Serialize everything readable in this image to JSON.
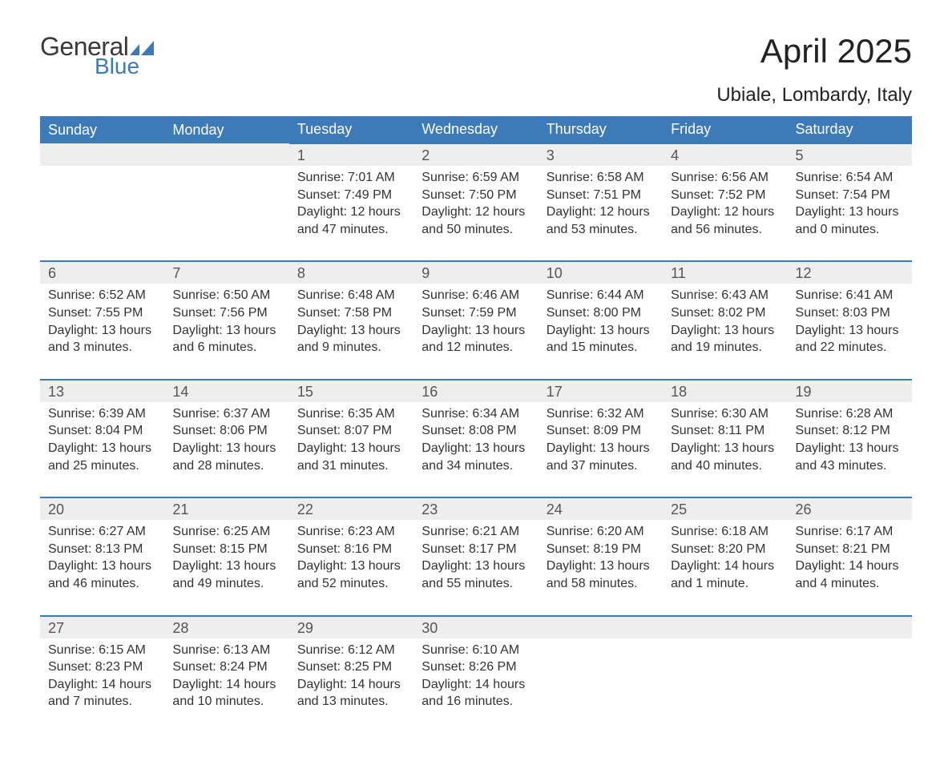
{
  "logo": {
    "general": "General",
    "blue": "Blue"
  },
  "title": "April 2025",
  "location": "Ubiale, Lombardy, Italy",
  "colors": {
    "header_bg": "#3d7ab8",
    "header_text": "#ffffff",
    "daynum_bg": "#eeeeee",
    "row_border": "#3d7ab8",
    "body_text": "#333333",
    "logo_blue": "#3d7ab8",
    "logo_gray": "#3a3a3a"
  },
  "weekdays": [
    "Sunday",
    "Monday",
    "Tuesday",
    "Wednesday",
    "Thursday",
    "Friday",
    "Saturday"
  ],
  "weeks": [
    [
      null,
      null,
      {
        "n": "1",
        "sr": "Sunrise: 7:01 AM",
        "ss": "Sunset: 7:49 PM",
        "dl1": "Daylight: 12 hours",
        "dl2": "and 47 minutes."
      },
      {
        "n": "2",
        "sr": "Sunrise: 6:59 AM",
        "ss": "Sunset: 7:50 PM",
        "dl1": "Daylight: 12 hours",
        "dl2": "and 50 minutes."
      },
      {
        "n": "3",
        "sr": "Sunrise: 6:58 AM",
        "ss": "Sunset: 7:51 PM",
        "dl1": "Daylight: 12 hours",
        "dl2": "and 53 minutes."
      },
      {
        "n": "4",
        "sr": "Sunrise: 6:56 AM",
        "ss": "Sunset: 7:52 PM",
        "dl1": "Daylight: 12 hours",
        "dl2": "and 56 minutes."
      },
      {
        "n": "5",
        "sr": "Sunrise: 6:54 AM",
        "ss": "Sunset: 7:54 PM",
        "dl1": "Daylight: 13 hours",
        "dl2": "and 0 minutes."
      }
    ],
    [
      {
        "n": "6",
        "sr": "Sunrise: 6:52 AM",
        "ss": "Sunset: 7:55 PM",
        "dl1": "Daylight: 13 hours",
        "dl2": "and 3 minutes."
      },
      {
        "n": "7",
        "sr": "Sunrise: 6:50 AM",
        "ss": "Sunset: 7:56 PM",
        "dl1": "Daylight: 13 hours",
        "dl2": "and 6 minutes."
      },
      {
        "n": "8",
        "sr": "Sunrise: 6:48 AM",
        "ss": "Sunset: 7:58 PM",
        "dl1": "Daylight: 13 hours",
        "dl2": "and 9 minutes."
      },
      {
        "n": "9",
        "sr": "Sunrise: 6:46 AM",
        "ss": "Sunset: 7:59 PM",
        "dl1": "Daylight: 13 hours",
        "dl2": "and 12 minutes."
      },
      {
        "n": "10",
        "sr": "Sunrise: 6:44 AM",
        "ss": "Sunset: 8:00 PM",
        "dl1": "Daylight: 13 hours",
        "dl2": "and 15 minutes."
      },
      {
        "n": "11",
        "sr": "Sunrise: 6:43 AM",
        "ss": "Sunset: 8:02 PM",
        "dl1": "Daylight: 13 hours",
        "dl2": "and 19 minutes."
      },
      {
        "n": "12",
        "sr": "Sunrise: 6:41 AM",
        "ss": "Sunset: 8:03 PM",
        "dl1": "Daylight: 13 hours",
        "dl2": "and 22 minutes."
      }
    ],
    [
      {
        "n": "13",
        "sr": "Sunrise: 6:39 AM",
        "ss": "Sunset: 8:04 PM",
        "dl1": "Daylight: 13 hours",
        "dl2": "and 25 minutes."
      },
      {
        "n": "14",
        "sr": "Sunrise: 6:37 AM",
        "ss": "Sunset: 8:06 PM",
        "dl1": "Daylight: 13 hours",
        "dl2": "and 28 minutes."
      },
      {
        "n": "15",
        "sr": "Sunrise: 6:35 AM",
        "ss": "Sunset: 8:07 PM",
        "dl1": "Daylight: 13 hours",
        "dl2": "and 31 minutes."
      },
      {
        "n": "16",
        "sr": "Sunrise: 6:34 AM",
        "ss": "Sunset: 8:08 PM",
        "dl1": "Daylight: 13 hours",
        "dl2": "and 34 minutes."
      },
      {
        "n": "17",
        "sr": "Sunrise: 6:32 AM",
        "ss": "Sunset: 8:09 PM",
        "dl1": "Daylight: 13 hours",
        "dl2": "and 37 minutes."
      },
      {
        "n": "18",
        "sr": "Sunrise: 6:30 AM",
        "ss": "Sunset: 8:11 PM",
        "dl1": "Daylight: 13 hours",
        "dl2": "and 40 minutes."
      },
      {
        "n": "19",
        "sr": "Sunrise: 6:28 AM",
        "ss": "Sunset: 8:12 PM",
        "dl1": "Daylight: 13 hours",
        "dl2": "and 43 minutes."
      }
    ],
    [
      {
        "n": "20",
        "sr": "Sunrise: 6:27 AM",
        "ss": "Sunset: 8:13 PM",
        "dl1": "Daylight: 13 hours",
        "dl2": "and 46 minutes."
      },
      {
        "n": "21",
        "sr": "Sunrise: 6:25 AM",
        "ss": "Sunset: 8:15 PM",
        "dl1": "Daylight: 13 hours",
        "dl2": "and 49 minutes."
      },
      {
        "n": "22",
        "sr": "Sunrise: 6:23 AM",
        "ss": "Sunset: 8:16 PM",
        "dl1": "Daylight: 13 hours",
        "dl2": "and 52 minutes."
      },
      {
        "n": "23",
        "sr": "Sunrise: 6:21 AM",
        "ss": "Sunset: 8:17 PM",
        "dl1": "Daylight: 13 hours",
        "dl2": "and 55 minutes."
      },
      {
        "n": "24",
        "sr": "Sunrise: 6:20 AM",
        "ss": "Sunset: 8:19 PM",
        "dl1": "Daylight: 13 hours",
        "dl2": "and 58 minutes."
      },
      {
        "n": "25",
        "sr": "Sunrise: 6:18 AM",
        "ss": "Sunset: 8:20 PM",
        "dl1": "Daylight: 14 hours",
        "dl2": "and 1 minute."
      },
      {
        "n": "26",
        "sr": "Sunrise: 6:17 AM",
        "ss": "Sunset: 8:21 PM",
        "dl1": "Daylight: 14 hours",
        "dl2": "and 4 minutes."
      }
    ],
    [
      {
        "n": "27",
        "sr": "Sunrise: 6:15 AM",
        "ss": "Sunset: 8:23 PM",
        "dl1": "Daylight: 14 hours",
        "dl2": "and 7 minutes."
      },
      {
        "n": "28",
        "sr": "Sunrise: 6:13 AM",
        "ss": "Sunset: 8:24 PM",
        "dl1": "Daylight: 14 hours",
        "dl2": "and 10 minutes."
      },
      {
        "n": "29",
        "sr": "Sunrise: 6:12 AM",
        "ss": "Sunset: 8:25 PM",
        "dl1": "Daylight: 14 hours",
        "dl2": "and 13 minutes."
      },
      {
        "n": "30",
        "sr": "Sunrise: 6:10 AM",
        "ss": "Sunset: 8:26 PM",
        "dl1": "Daylight: 14 hours",
        "dl2": "and 16 minutes."
      },
      null,
      null,
      null
    ]
  ]
}
